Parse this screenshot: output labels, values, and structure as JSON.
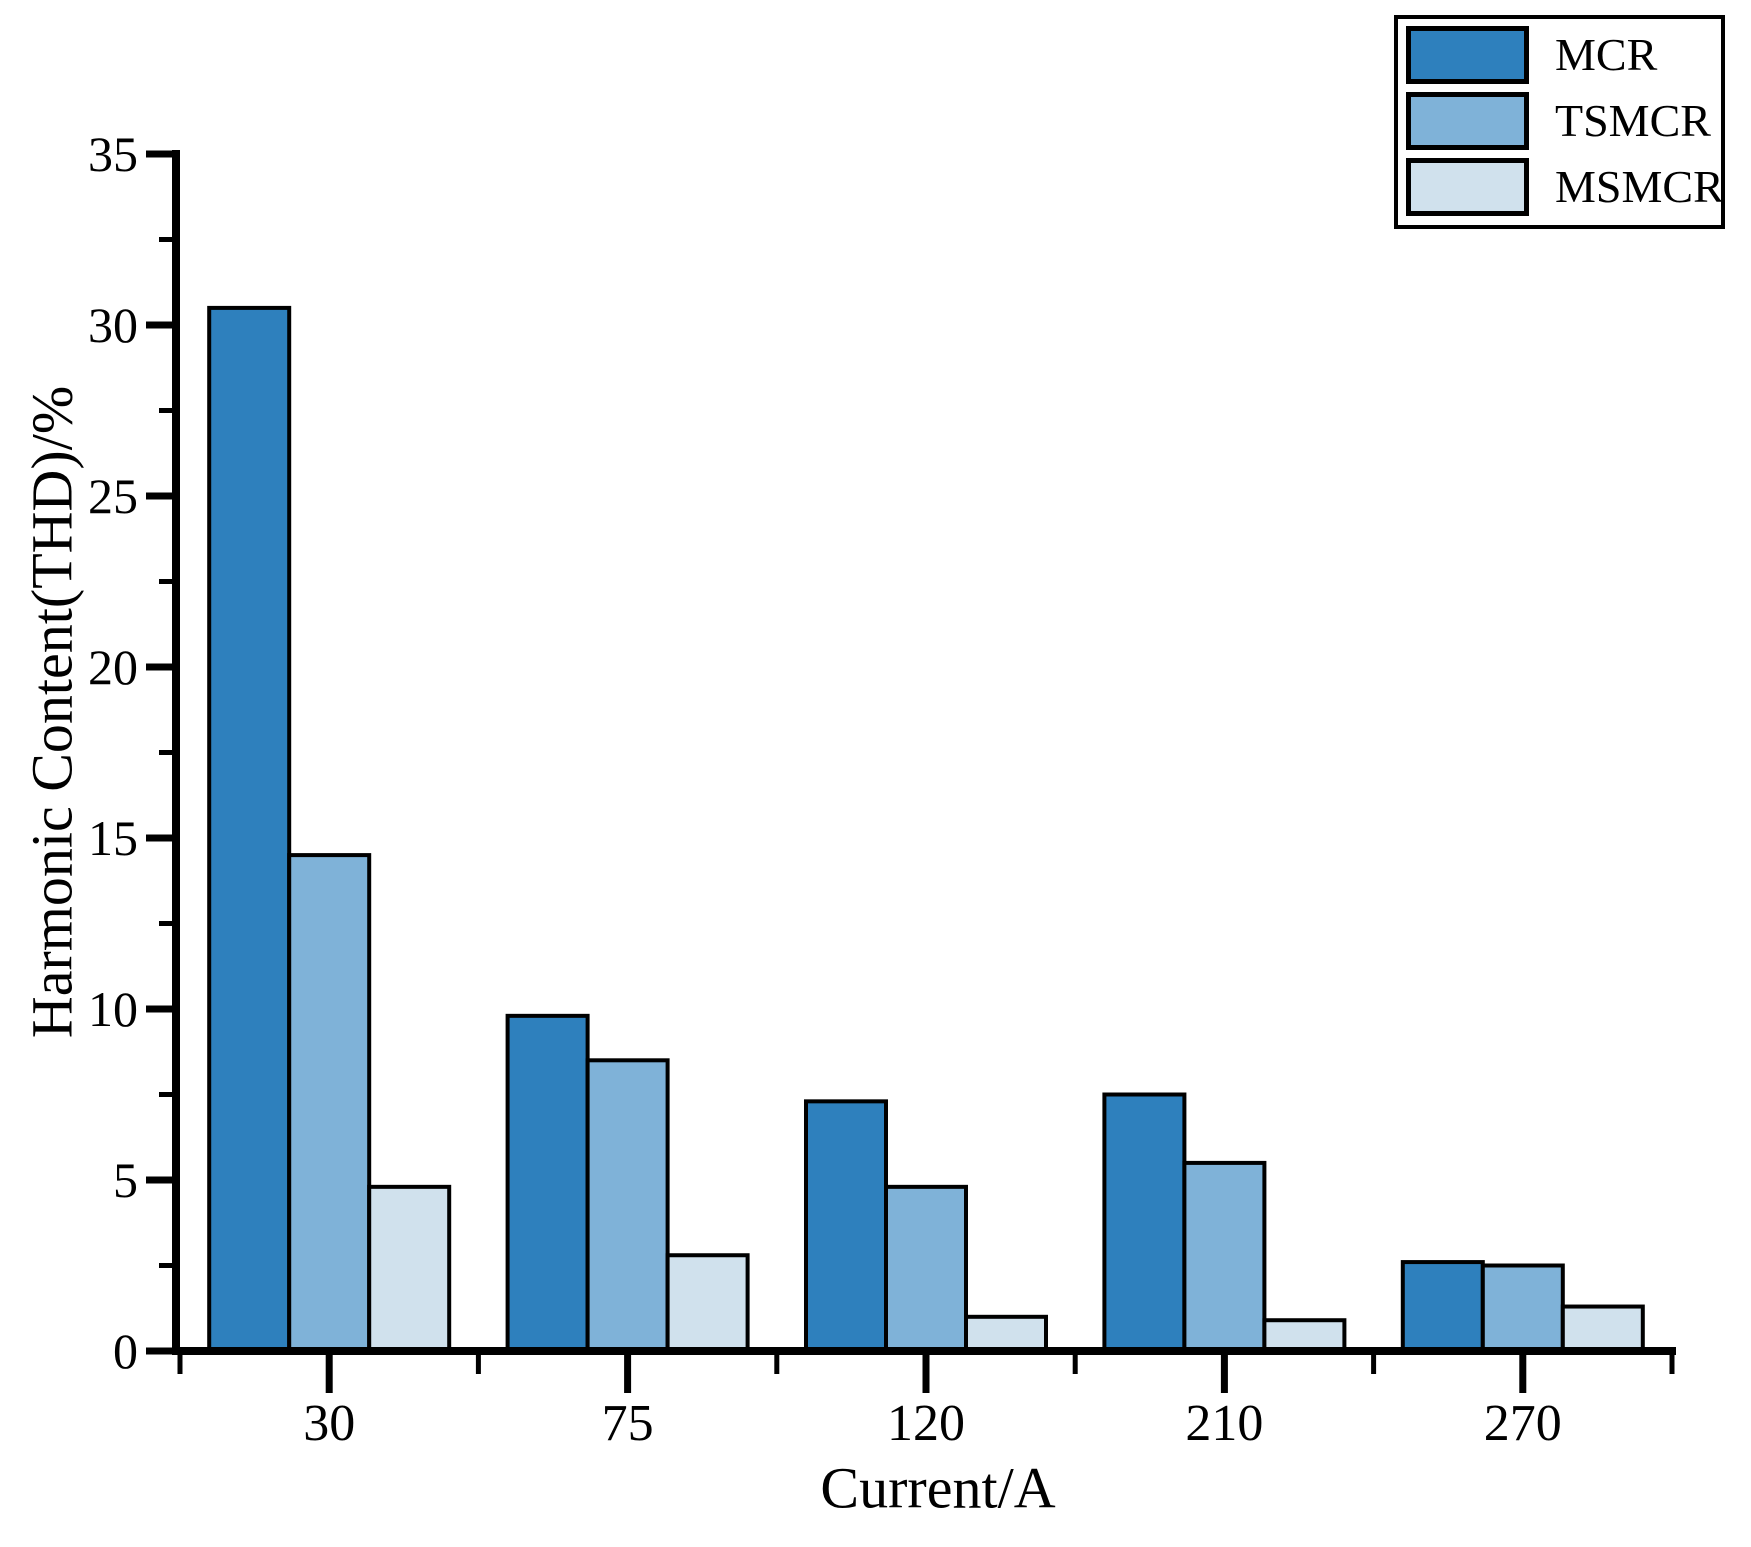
{
  "chart_data": {
    "type": "bar",
    "title": "",
    "xlabel": "Current/A",
    "ylabel": "Harmonic Content(THD)/%",
    "categories": [
      "30",
      "75",
      "120",
      "210",
      "270"
    ],
    "series": [
      {
        "name": "MCR",
        "color": "#2e80bd",
        "values": [
          30.5,
          9.8,
          7.3,
          7.5,
          2.6
        ]
      },
      {
        "name": "TSMCR",
        "color": "#7fb2d8",
        "values": [
          14.5,
          8.5,
          4.8,
          5.5,
          2.5
        ]
      },
      {
        "name": "MSMCR",
        "color": "#d0e1ed",
        "values": [
          4.8,
          2.8,
          1.0,
          0.9,
          1.3
        ]
      }
    ],
    "ylim": [
      0,
      35
    ],
    "y_major_ticks": [
      0,
      5,
      10,
      15,
      20,
      25,
      30,
      35
    ],
    "y_minor_tick_step": 2.5,
    "grid": false,
    "legend_position": "top-right",
    "bar_edge_color": "#000000",
    "axis_color": "#000000",
    "background_color": "#ffffff"
  }
}
